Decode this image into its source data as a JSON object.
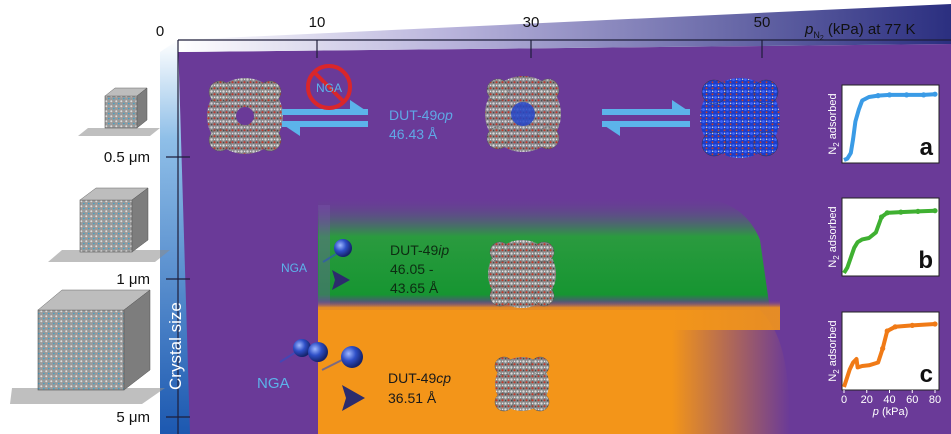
{
  "top_axis": {
    "zero": "0",
    "ticks": [
      "10",
      "30",
      "50"
    ],
    "label_p": "p",
    "label_sub": "N",
    "label_sub2": "2",
    "label_rest": " (kPa) at 77 K"
  },
  "left_axis": {
    "title": "Crystal size",
    "ticks": [
      "0.5 μm",
      "1 μm",
      "5 μm"
    ]
  },
  "phases": {
    "op": {
      "name_prefix": "DUT-49",
      "name_suffix": "op",
      "value": "46.43 Å",
      "color": "#5fa8e6"
    },
    "ip": {
      "name_prefix": "DUT-49",
      "name_suffix": "ip",
      "value1": "46.05 -",
      "value2": "43.65 Å",
      "color": "#0d4d16"
    },
    "cp": {
      "name_prefix": "DUT-49",
      "name_suffix": "cp",
      "value": "36.51 Å",
      "color": "#1a1a1a"
    }
  },
  "nga_labels": {
    "op": "NGA",
    "ip": "NGA",
    "cp": "NGA"
  },
  "insets": {
    "ylabel_prefix": "N",
    "ylabel_sub": "2",
    "ylabel_rest": " adsorbed",
    "xlabel_p": "p",
    "xlabel_rest": " (kPa)",
    "xticks": [
      "0",
      "20",
      "40",
      "60",
      "80"
    ],
    "panels": [
      {
        "letter": "a",
        "color": "#3a9be6"
      },
      {
        "letter": "b",
        "color": "#3fb031"
      },
      {
        "letter": "c",
        "color": "#f07a16"
      }
    ]
  },
  "colors": {
    "background_purple": "#6a3a98",
    "axis_blue": "#2c63b8",
    "axis_dark": "#2b2f6e",
    "green_region": "#1f9c2f",
    "orange_region": "#f39519",
    "arrow_dark": "#2c2c6c",
    "arrow_light": "#5cb3ea",
    "forbidden_red": "#d9262b"
  }
}
